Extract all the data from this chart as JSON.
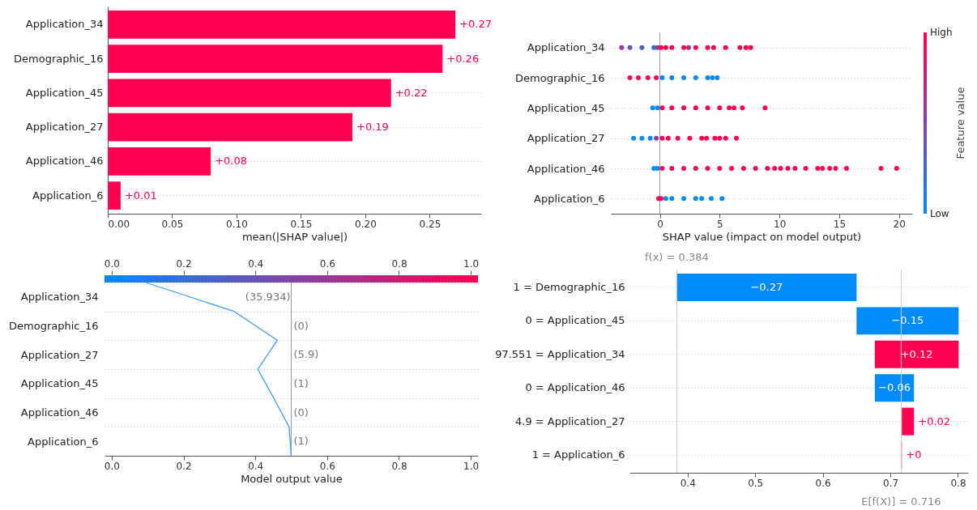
{
  "chart_data": [
    {
      "type": "bar",
      "orientation": "horizontal",
      "categories": [
        "Application_34",
        "Demographic_16",
        "Application_45",
        "Application_27",
        "Application_46",
        "Application_6"
      ],
      "values": [
        0.27,
        0.26,
        0.22,
        0.19,
        0.08,
        0.01
      ],
      "value_labels": [
        "+0.27",
        "+0.26",
        "+0.22",
        "+0.19",
        "+0.08",
        "+0.01"
      ],
      "color": "#ff0051",
      "xlim": [
        0,
        0.29
      ],
      "xticks": [
        {
          "value": 0,
          "label": "0.00"
        },
        0.05,
        {
          "value": 0.1,
          "label": "0.10"
        },
        0.15,
        {
          "value": 0.2,
          "label": "0.20"
        },
        0.25
      ],
      "xlabel": "mean(|SHAP value|)",
      "grid": "y"
    },
    {
      "type": "scatter",
      "orientation": "horizontal",
      "categories": [
        "Application_34",
        "Demographic_16",
        "Application_45",
        "Application_27",
        "Application_46",
        "Application_6"
      ],
      "series": [
        {
          "x": [
            "Application_34",
            "Application_34",
            "Application_34",
            "Application_34",
            "Application_34",
            "Application_34",
            "Application_34",
            "Application_34",
            "Application_34",
            "Application_34",
            "Application_34",
            "Application_34",
            "Application_34",
            "Application_34",
            "Application_34",
            "Application_34",
            "Application_34"
          ],
          "values": [
            -3.2,
            -2.5,
            -1.5,
            -0.5,
            -0.2,
            0.1,
            0.5,
            1,
            2,
            2.4,
            3,
            4,
            4.5,
            5.5,
            6.7,
            7.2,
            7.6
          ],
          "colors": [
            "#993895",
            "#6653b7",
            "#4c61c8",
            "#336fd9",
            "#7f45a6",
            "#ff0051",
            "#ff0051",
            "#ff0051",
            "#ff0051",
            "#b22a84",
            "#ff0051",
            "#ff0051",
            "#ff0051",
            "#ff0051",
            "#ff0051",
            "#ff0051",
            "#ff0051"
          ]
        },
        {
          "x": [
            "Demographic_16",
            "Demographic_16",
            "Demographic_16",
            "Demographic_16",
            "Demographic_16",
            "Demographic_16",
            "Demographic_16",
            "Demographic_16",
            "Demographic_16",
            "Demographic_16",
            "Demographic_16"
          ],
          "values": [
            -2.5,
            -1.8,
            -1,
            -0.3,
            0.2,
            1,
            2,
            3,
            4,
            4.4,
            4.8
          ],
          "colors": [
            "#ff0051",
            "#ff0051",
            "#ff0051",
            "#ff0051",
            "#008bfb",
            "#008bfb",
            "#008bfb",
            "#008bfb",
            "#008bfb",
            "#008bfb",
            "#008bfb"
          ]
        },
        {
          "x": [
            "Application_45",
            "Application_45",
            "Application_45",
            "Application_45",
            "Application_45",
            "Application_45",
            "Application_45",
            "Application_45",
            "Application_45",
            "Application_45",
            "Application_45",
            "Application_45"
          ],
          "values": [
            -0.6,
            -0.2,
            0.2,
            1,
            2,
            3,
            4,
            5,
            5.8,
            6.2,
            6.9,
            8.8
          ],
          "colors": [
            "#008bfb",
            "#008bfb",
            "#ff0051",
            "#ff0051",
            "#ff0051",
            "#ff0051",
            "#ff0051",
            "#ff0051",
            "#ff0051",
            "#ff0051",
            "#ff0051",
            "#ff0051"
          ]
        },
        {
          "x": [
            "Application_27",
            "Application_27",
            "Application_27",
            "Application_27",
            "Application_27",
            "Application_27",
            "Application_27",
            "Application_27",
            "Application_27",
            "Application_27",
            "Application_27",
            "Application_27",
            "Application_27",
            "Application_27"
          ],
          "values": [
            -2.2,
            -1.5,
            -0.8,
            -0.3,
            0.2,
            0.7,
            1.5,
            2.5,
            3.5,
            3.9,
            4.6,
            5,
            5.5,
            6.4
          ],
          "colors": [
            "#008bfb",
            "#008bfb",
            "#008bfb",
            "#7f45a6",
            "#ff0051",
            "#ff0051",
            "#ff0051",
            "#ff0051",
            "#ff0051",
            "#ff0051",
            "#ff0051",
            "#ff0051",
            "#ff0051",
            "#ff0051"
          ]
        },
        {
          "x": [
            "Application_46",
            "Application_46",
            "Application_46",
            "Application_46",
            "Application_46",
            "Application_46",
            "Application_46",
            "Application_46",
            "Application_46",
            "Application_46",
            "Application_46",
            "Application_46",
            "Application_46",
            "Application_46",
            "Application_46",
            "Application_46",
            "Application_46",
            "Application_46",
            "Application_46",
            "Application_46",
            "Application_46",
            "Application_46",
            "Application_46"
          ],
          "values": [
            -0.5,
            -0.2,
            0.2,
            1,
            2,
            3,
            4,
            5,
            6,
            7,
            8,
            9,
            9.6,
            10.1,
            10.7,
            11.3,
            12.2,
            13.2,
            13.6,
            14.2,
            14.7,
            15.6,
            18.5
          ],
          "colors": [
            "#008bfb",
            "#008bfb",
            "#ff0051",
            "#ff0051",
            "#ff0051",
            "#ff0051",
            "#ff0051",
            "#ff0051",
            "#ff0051",
            "#ff0051",
            "#ff0051",
            "#ff0051",
            "#ff0051",
            "#ff0051",
            "#ff0051",
            "#ff0051",
            "#ff0051",
            "#ff0051",
            "#ff0051",
            "#ff0051",
            "#ff0051",
            "#ff0051",
            "#ff0051"
          ]
        },
        {
          "x": [
            "Application_6",
            "Application_6",
            "Application_6",
            "Application_6",
            "Application_6",
            "Application_6",
            "Application_6",
            "Application_6",
            "Application_6",
            "Application_46"
          ],
          "values": [
            -0.1,
            0.1,
            0.5,
            1,
            2,
            3,
            3.5,
            4.3,
            5.2,
            19.8
          ],
          "colors": [
            "#ff0051",
            "#ff0051",
            "#008bfb",
            "#008bfb",
            "#008bfb",
            "#008bfb",
            "#008bfb",
            "#008bfb",
            "#008bfb",
            "#ff0051"
          ]
        }
      ],
      "xlim": [
        -4.1,
        21.1
      ],
      "xticks": [
        0,
        5,
        10,
        15,
        20
      ],
      "xlabel": "SHAP value (impact on model output)",
      "clabel": "Feature value",
      "clim": [
        0,
        1
      ],
      "cticks": [
        {
          "value": 0,
          "label": "Low"
        },
        {
          "value": 1,
          "label": "High"
        }
      ],
      "ref_lines": [
        {
          "axis": "x",
          "value": 0,
          "color": "#999999"
        }
      ],
      "grid": "y"
    },
    {
      "type": "line",
      "orientation": "horizontal",
      "categories": [
        null,
        "Application_34",
        null,
        "Demographic_16",
        null,
        "Application_27",
        null,
        "Application_45",
        null,
        "Application_46",
        null,
        "Application_6",
        null
      ],
      "series": [
        {
          "color": "#3d9df3",
          "values": [
            0.095,
            null,
            0.341,
            null,
            0.461,
            null,
            0.407,
            null,
            0.451,
            null,
            0.494,
            null,
            0.5
          ]
        }
      ],
      "xlim": [
        -0.02,
        1.02
      ],
      "xticks": [
        {
          "value": 0,
          "label": "0.0"
        },
        0.2,
        0.4,
        0.6,
        0.8,
        {
          "value": 1,
          "label": "1.0"
        }
      ],
      "x2lim": [
        -0.02,
        1.02
      ],
      "x2ticks": [
        {
          "value": 0,
          "label": "0.0"
        },
        0.2,
        0.4,
        0.6,
        0.8,
        {
          "value": 1,
          "label": "1.0"
        }
      ],
      "xlabel": "Model output value",
      "ref_lines": [
        {
          "axis": "x",
          "value": 0.5,
          "color": "#999999"
        }
      ],
      "annotations": [
        "(35.934)",
        "(0)",
        "(5.9)",
        "(1)",
        "(0)",
        "(1)"
      ],
      "grid": "y"
    },
    {
      "type": "bar",
      "orientation": "horizontal",
      "categories": [
        "1 = Demographic_16",
        "0 = Application_45",
        "97.551 = Application_34",
        "0 = Application_46",
        "4.9 = Application_27",
        "1 = Application_6"
      ],
      "values": [
        -0.266,
        -0.151,
        0.124,
        -0.058,
        0.018,
        0.001
      ],
      "base": [
        0.65,
        0.801,
        0.677,
        0.735,
        0.717,
        0.716
      ],
      "colors": [
        "#008bfb",
        "#008bfb",
        "#ff0051",
        "#008bfb",
        "#ff0051",
        "#ff0051"
      ],
      "value_labels": [
        "−0.27",
        "−0.15",
        "+0.12",
        "−0.06",
        "+0.02",
        "+0"
      ],
      "xlim": [
        0.314,
        0.815
      ],
      "xticks": [
        0.4,
        0.5,
        0.6,
        0.7,
        0.8
      ],
      "ref_lines": [
        {
          "axis": "x",
          "value": 0.384,
          "label": "f(x) = 0.384",
          "color": "#cccccc"
        },
        {
          "axis": "x",
          "value": 0.716,
          "label": "E[f(X)] = 0.716",
          "color": "#cccccc"
        }
      ],
      "grid": "y"
    }
  ]
}
